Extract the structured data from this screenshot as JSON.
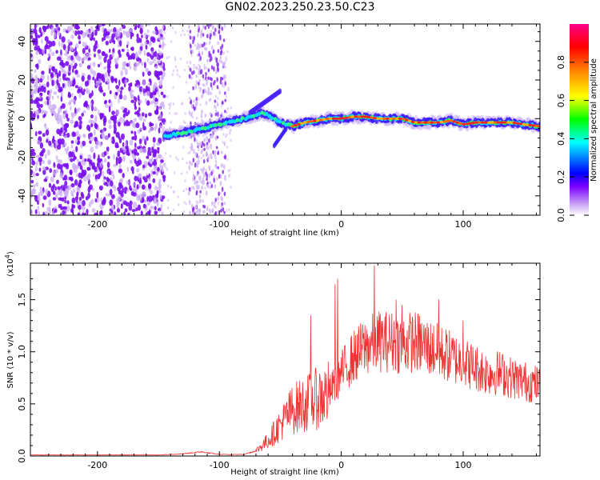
{
  "title": "GN02.2023.250.23.50.C23",
  "chart_data": [
    {
      "type": "heatmap",
      "xlabel": "Height of straight line (km)",
      "ylabel": "Frequency (Hz)",
      "xlim": [
        -255,
        163
      ],
      "ylim": [
        -50,
        49
      ],
      "xticks": [
        -200,
        -100,
        0,
        100
      ],
      "yticks": [
        -40,
        -20,
        0,
        20,
        40
      ],
      "colorbar": {
        "label": "Normalized spectral amplitude",
        "range": [
          0,
          1
        ],
        "ticks": [
          "0.0",
          "0.2",
          "0.4",
          "0.6",
          "0.8"
        ],
        "colors": [
          "#ffffff",
          "#d0b0f5",
          "#7b00ff",
          "#0000ff",
          "#00ffff",
          "#00ff00",
          "#ffff00",
          "#ff8800",
          "#ff0000",
          "#ff0088"
        ]
      },
      "ridge": {
        "x": [
          -145,
          -120,
          -100,
          -80,
          -65,
          -55,
          -50,
          -45,
          -40,
          -30,
          -20,
          -10,
          0,
          10,
          20,
          30,
          40,
          50,
          60,
          70,
          80,
          90,
          100,
          110,
          120,
          130,
          140,
          150,
          163
        ],
        "y": [
          -9,
          -6,
          -3,
          0,
          3,
          0,
          -2,
          -3,
          -4,
          -2,
          -1,
          0,
          0,
          1,
          1,
          0,
          0,
          0,
          -2,
          -2,
          -2,
          -1,
          -3,
          -2,
          -2,
          -2,
          -2,
          -3,
          -4
        ]
      },
      "noise_region_x": [
        -255,
        -145
      ],
      "noise_band_x": [
        -125,
        -95
      ]
    },
    {
      "type": "line",
      "xlabel": "Height of straight line (km)",
      "ylabel": "SNR (10 * v/v)",
      "yscale_label": "(x10",
      "yscale_exp": "4",
      "xlim": [
        -255,
        163
      ],
      "ylim": [
        0,
        1.85
      ],
      "xticks": [
        -200,
        -100,
        0,
        100
      ],
      "yticks": [
        "0.0",
        "0.5",
        "1.0",
        "1.5"
      ],
      "color": "#ee3333",
      "envelope": {
        "x": [
          -255,
          -150,
          -130,
          -115,
          -100,
          -80,
          -70,
          -60,
          -50,
          -40,
          -30,
          -20,
          -10,
          0,
          10,
          20,
          30,
          40,
          50,
          60,
          70,
          80,
          90,
          100,
          110,
          120,
          130,
          140,
          150,
          163
        ],
        "y": [
          0.01,
          0.01,
          0.02,
          0.04,
          0.015,
          0.015,
          0.05,
          0.15,
          0.3,
          0.45,
          0.5,
          0.55,
          0.6,
          0.8,
          0.95,
          1.05,
          1.1,
          1.1,
          1.08,
          1.1,
          1.05,
          1.0,
          0.95,
          0.9,
          0.85,
          0.8,
          0.8,
          0.75,
          0.72,
          0.68
        ]
      },
      "spikes": [
        {
          "x": -25,
          "y": 1.35
        },
        {
          "x": -5,
          "y": 1.65
        },
        {
          "x": -3,
          "y": 1.7
        },
        {
          "x": 27,
          "y": 1.83
        },
        {
          "x": 45,
          "y": 1.5
        },
        {
          "x": 50,
          "y": 1.45
        },
        {
          "x": 80,
          "y": 1.5
        },
        {
          "x": 100,
          "y": 1.3
        }
      ]
    }
  ]
}
